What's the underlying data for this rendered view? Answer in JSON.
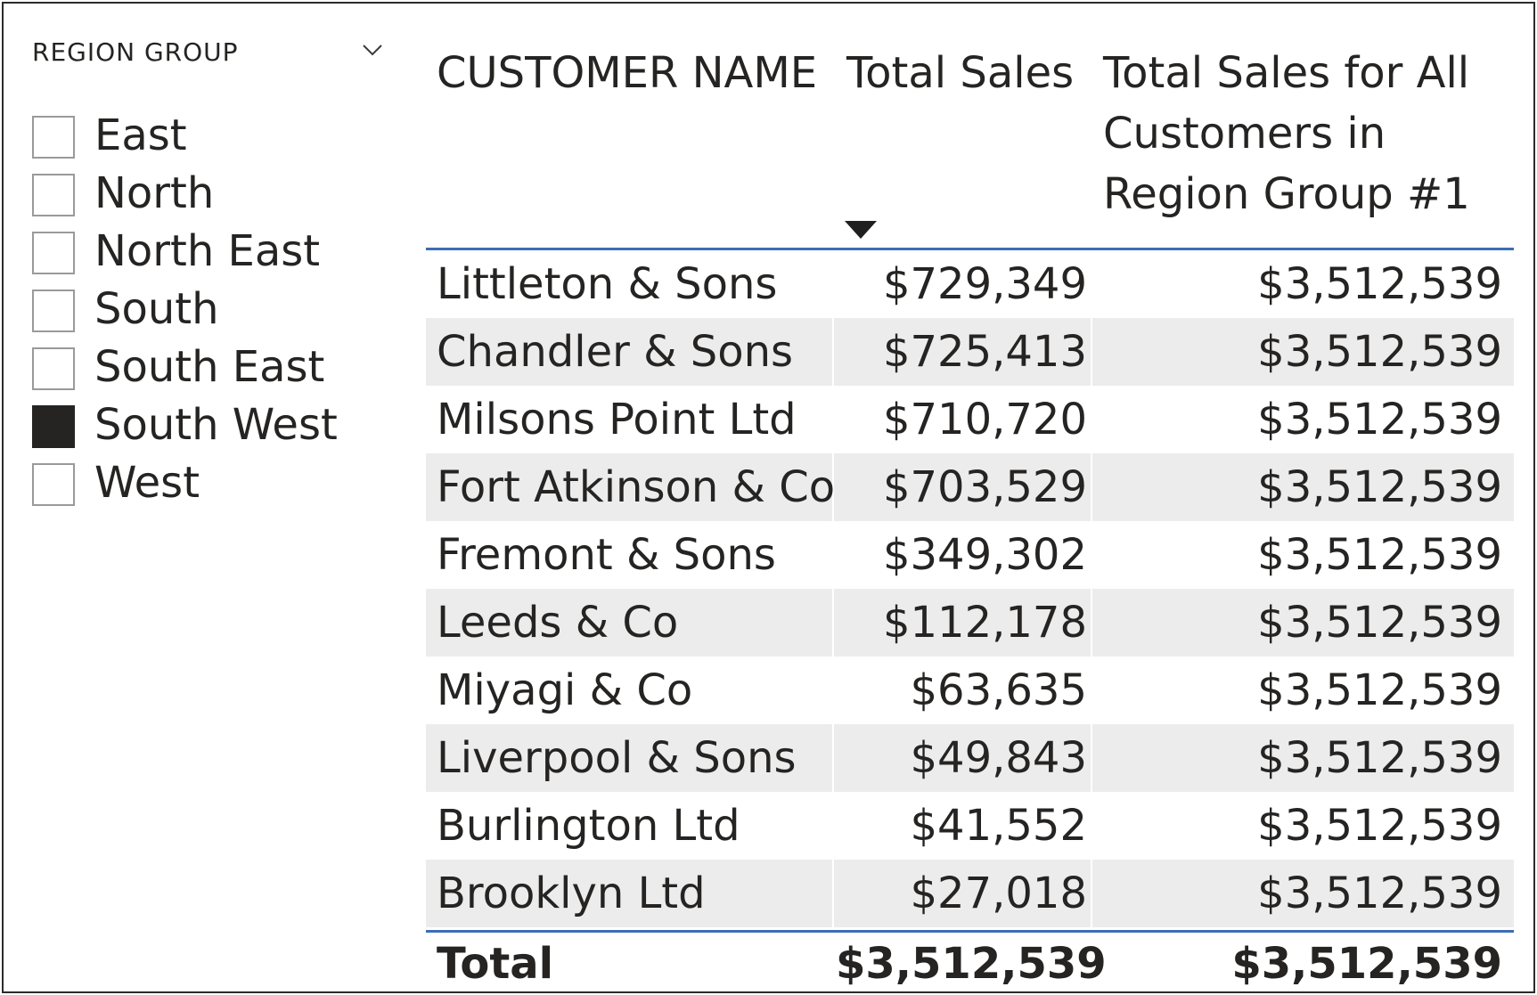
{
  "slicer": {
    "title": "REGION GROUP",
    "items": [
      {
        "label": "East",
        "checked": false
      },
      {
        "label": "North",
        "checked": false
      },
      {
        "label": "North East",
        "checked": false
      },
      {
        "label": "South",
        "checked": false
      },
      {
        "label": "South East",
        "checked": false
      },
      {
        "label": "South West",
        "checked": true
      },
      {
        "label": "West",
        "checked": false
      }
    ]
  },
  "table": {
    "headers": {
      "name": "CUSTOMER NAME",
      "sales": "Total Sales",
      "all": "Total Sales for All Customers in Region Group #1"
    },
    "sort": {
      "column": "sales",
      "direction": "descending"
    },
    "rows": [
      {
        "name": "Littleton & Sons",
        "sales": "$729,349",
        "all": "$3,512,539"
      },
      {
        "name": "Chandler & Sons",
        "sales": "$725,413",
        "all": "$3,512,539"
      },
      {
        "name": "Milsons Point Ltd",
        "sales": "$710,720",
        "all": "$3,512,539"
      },
      {
        "name": "Fort Atkinson & Co",
        "sales": "$703,529",
        "all": "$3,512,539"
      },
      {
        "name": "Fremont & Sons",
        "sales": "$349,302",
        "all": "$3,512,539"
      },
      {
        "name": "Leeds & Co",
        "sales": "$112,178",
        "all": "$3,512,539"
      },
      {
        "name": "Miyagi & Co",
        "sales": "$63,635",
        "all": "$3,512,539"
      },
      {
        "name": "Liverpool & Sons",
        "sales": "$49,843",
        "all": "$3,512,539"
      },
      {
        "name": "Burlington Ltd",
        "sales": "$41,552",
        "all": "$3,512,539"
      },
      {
        "name": "Brooklyn Ltd",
        "sales": "$27,018",
        "all": "$3,512,539"
      }
    ],
    "total": {
      "name": "Total",
      "sales": "$3,512,539",
      "all": "$3,512,539"
    }
  },
  "colors": {
    "header_rule": "#3c6db5",
    "alt_row": "#ececec",
    "checked_box": "#252423",
    "text": "#252423"
  },
  "icons": {
    "dropdown": "chevron-down-icon",
    "sort": "sort-descending-icon"
  }
}
